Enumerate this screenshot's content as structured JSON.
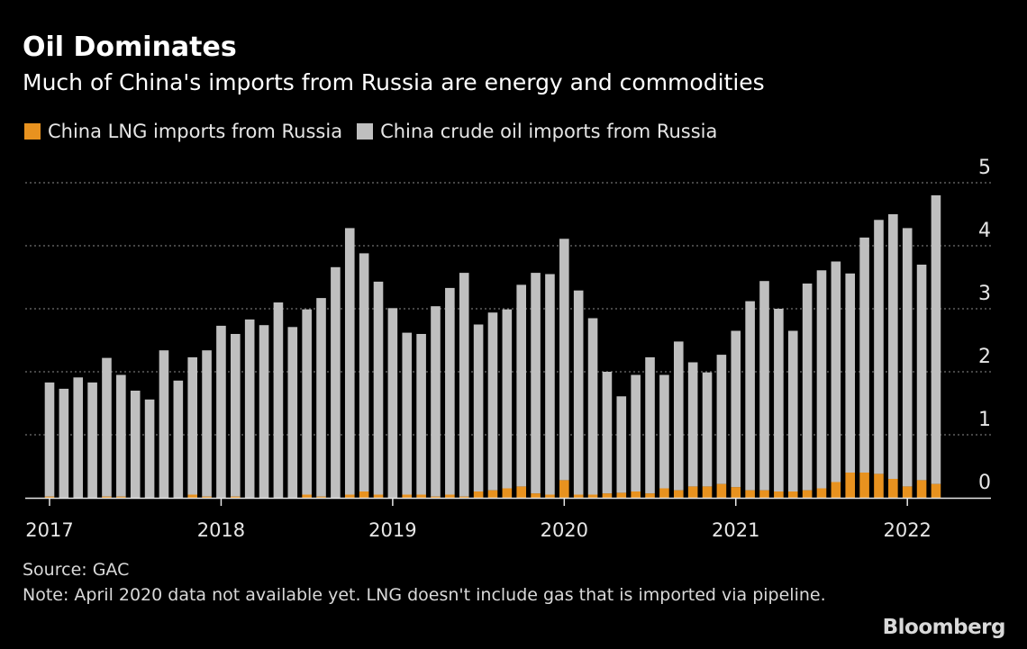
{
  "header": {
    "title": "Oil Dominates",
    "subtitle": "Much of China's imports from Russia are energy and commodities"
  },
  "legend": [
    {
      "label": "China LNG imports from Russia",
      "color": "#e8921f"
    },
    {
      "label": "China crude oil imports from Russia",
      "color": "#bfbfbf"
    }
  ],
  "footer": {
    "source": "Source: GAC",
    "note": "Note: April 2020 data not available yet. LNG doesn't include gas that is imported via pipeline.",
    "brand": "Bloomberg"
  },
  "chart_data": {
    "type": "bar",
    "stacked": true,
    "x_start": "2017-01",
    "x_labels": [
      "2017",
      "2018",
      "2019",
      "2020",
      "2021",
      "2022"
    ],
    "yticks": [
      0,
      1,
      2,
      3,
      4,
      5
    ],
    "ylim": [
      0,
      5
    ],
    "grid": true,
    "legend_position": "top-left",
    "series": [
      {
        "name": "China LNG imports from Russia",
        "color": "#e8921f",
        "values": [
          0.02,
          0.0,
          0.0,
          0.0,
          0.02,
          0.02,
          0.0,
          0.0,
          0.0,
          0.0,
          0.05,
          0.02,
          0.0,
          0.02,
          0.0,
          0.0,
          0.0,
          0.0,
          0.05,
          0.02,
          0.0,
          0.05,
          0.1,
          0.05,
          0.0,
          0.05,
          0.05,
          0.02,
          0.05,
          0.02,
          0.1,
          0.12,
          0.15,
          0.18,
          0.07,
          0.05,
          0.28,
          0.05,
          0.05,
          0.07,
          0.08,
          0.1,
          0.07,
          0.15,
          0.12,
          0.18,
          0.18,
          0.22,
          0.17,
          0.12,
          0.12,
          0.1,
          0.1,
          0.12,
          0.15,
          0.25,
          0.4,
          0.4,
          0.38,
          0.3,
          0.18,
          0.28,
          0.22
        ]
      },
      {
        "name": "China crude oil imports from Russia",
        "color": "#bfbfbf",
        "values": [
          1.81,
          1.73,
          1.91,
          1.83,
          2.2,
          1.93,
          1.7,
          1.56,
          2.34,
          1.86,
          2.18,
          2.32,
          2.73,
          2.58,
          2.83,
          2.74,
          3.1,
          2.71,
          2.94,
          3.15,
          3.66,
          4.23,
          3.78,
          3.38,
          3.01,
          2.57,
          2.55,
          3.02,
          3.28,
          3.55,
          2.65,
          2.82,
          2.84,
          3.2,
          3.5,
          3.5,
          3.83,
          3.24,
          2.8,
          1.93,
          1.53,
          1.85,
          2.16,
          1.8,
          2.36,
          1.97,
          1.81,
          2.05,
          2.48,
          3.0,
          3.32,
          2.9,
          2.55,
          3.28,
          3.46,
          3.5,
          3.16,
          3.73,
          4.03,
          4.2,
          4.1,
          3.42,
          4.58
        ]
      }
    ]
  }
}
